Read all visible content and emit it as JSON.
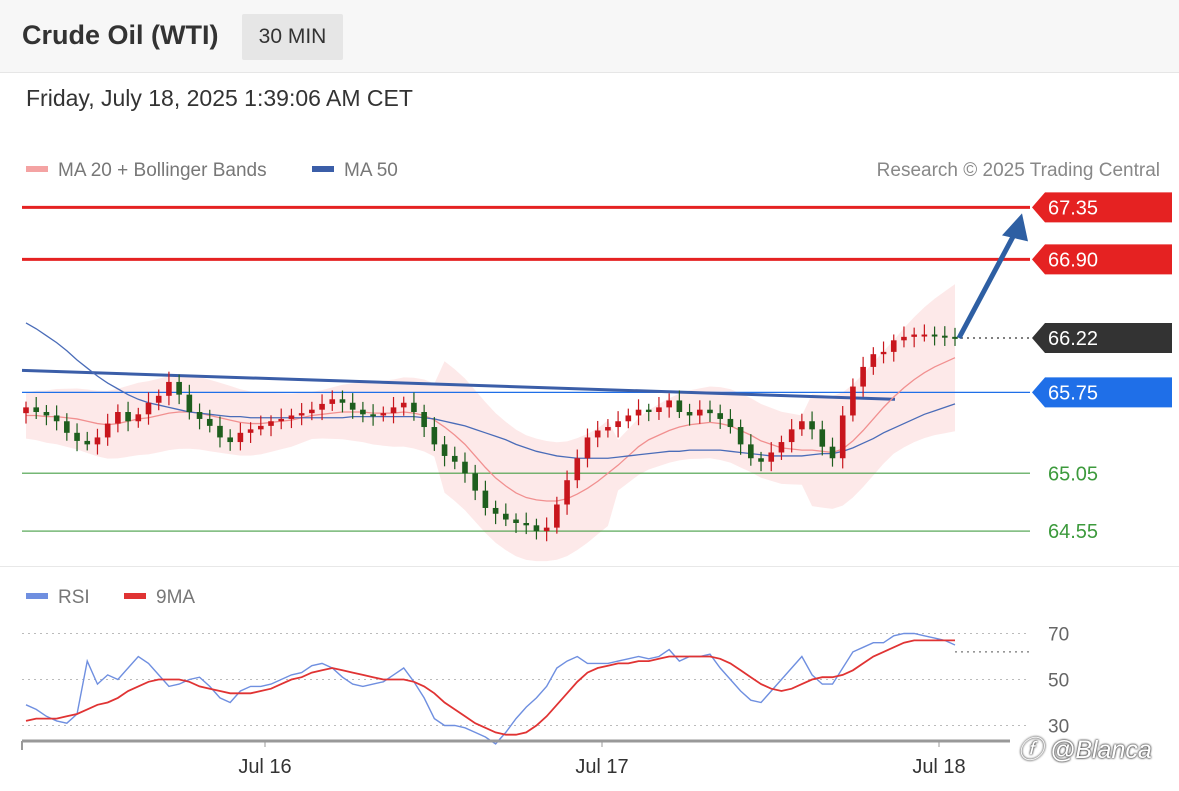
{
  "header": {
    "title": "Crude Oil (WTI)",
    "timeframe": "30 MIN",
    "timestamp": "Friday, July 18, 2025 1:39:06 AM CET"
  },
  "legend": {
    "ma20_label": "MA 20 + Bollinger Bands",
    "ma20_color": "#f4a3a3",
    "ma50_label": "MA 50",
    "ma50_color": "#3b5ea8",
    "credit": "Research © 2025 Trading Central"
  },
  "rsi_legend": {
    "rsi_label": "RSI",
    "rsi_color": "#6f8fe0",
    "ma9_label": "9MA",
    "ma9_color": "#e03333"
  },
  "chart_data": [
    {
      "type": "candlestick",
      "ylim": [
        64.3,
        67.5
      ],
      "x_tick_labels": [
        "Jul 16",
        "Jul 17",
        "Jul 18"
      ],
      "levels": [
        {
          "value": 67.35,
          "label": "67.35",
          "color": "#e52222",
          "kind": "resistance"
        },
        {
          "value": 66.9,
          "label": "66.90",
          "color": "#e52222",
          "kind": "resistance"
        },
        {
          "value": 66.22,
          "label": "66.22",
          "color": "#333333",
          "kind": "last"
        },
        {
          "value": 65.75,
          "label": "65.75",
          "color": "#1f6fe8",
          "kind": "pivot"
        },
        {
          "value": 65.05,
          "label": "65.05",
          "color": "#3c9a3c",
          "kind": "support"
        },
        {
          "value": 64.55,
          "label": "64.55",
          "color": "#3c9a3c",
          "kind": "support"
        }
      ],
      "close": [
        65.62,
        65.58,
        65.55,
        65.5,
        65.4,
        65.33,
        65.3,
        65.36,
        65.48,
        65.58,
        65.5,
        65.56,
        65.66,
        65.72,
        65.84,
        65.73,
        65.58,
        65.52,
        65.46,
        65.36,
        65.32,
        65.4,
        65.43,
        65.46,
        65.5,
        65.52,
        65.55,
        65.57,
        65.6,
        65.65,
        65.69,
        65.66,
        65.6,
        65.56,
        65.55,
        65.57,
        65.62,
        65.66,
        65.58,
        65.45,
        65.3,
        65.2,
        65.15,
        65.05,
        64.9,
        64.75,
        64.7,
        64.65,
        64.62,
        64.6,
        64.55,
        64.58,
        64.78,
        64.99,
        65.18,
        65.36,
        65.42,
        65.45,
        65.5,
        65.55,
        65.6,
        65.58,
        65.62,
        65.68,
        65.58,
        65.55,
        65.6,
        65.57,
        65.52,
        65.45,
        65.3,
        65.18,
        65.15,
        65.23,
        65.32,
        65.43,
        65.5,
        65.43,
        65.28,
        65.18,
        65.55,
        65.8,
        65.97,
        66.08,
        66.1,
        66.2,
        66.23,
        66.25,
        66.25,
        66.24,
        66.23,
        66.22
      ],
      "ma20": [
        65.55,
        65.55,
        65.54,
        65.54,
        65.53,
        65.52,
        65.5,
        65.48,
        65.47,
        65.48,
        65.5,
        65.52,
        65.53,
        65.55,
        65.57,
        65.58,
        65.58,
        65.57,
        65.55,
        65.53,
        65.51,
        65.49,
        65.48,
        65.48,
        65.49,
        65.5,
        65.51,
        65.53,
        65.55,
        65.56,
        65.57,
        65.58,
        65.58,
        65.58,
        65.57,
        65.57,
        65.57,
        65.58,
        65.57,
        65.55,
        65.51,
        65.45,
        65.38,
        65.3,
        65.2,
        65.1,
        65.01,
        64.94,
        64.88,
        64.84,
        64.82,
        64.81,
        64.81,
        64.83,
        64.87,
        64.92,
        64.98,
        65.05,
        65.12,
        65.2,
        65.28,
        65.34,
        65.38,
        65.42,
        65.45,
        65.47,
        65.48,
        65.49,
        65.48,
        65.46,
        65.42,
        65.38,
        65.33,
        65.3,
        65.27,
        65.26,
        65.25,
        65.25,
        65.24,
        65.23,
        65.26,
        65.33,
        65.42,
        65.52,
        65.62,
        65.71,
        65.79,
        65.86,
        65.92,
        65.97,
        66.01,
        66.05
      ],
      "ma50": [
        66.35,
        66.3,
        66.24,
        66.18,
        66.11,
        66.03,
        65.96,
        65.89,
        65.83,
        65.78,
        65.73,
        65.69,
        65.66,
        65.64,
        65.62,
        65.6,
        65.58,
        65.57,
        65.56,
        65.55,
        65.54,
        65.54,
        65.53,
        65.53,
        65.53,
        65.53,
        65.53,
        65.53,
        65.53,
        65.53,
        65.53,
        65.53,
        65.54,
        65.54,
        65.54,
        65.54,
        65.54,
        65.54,
        65.54,
        65.53,
        65.52,
        65.5,
        65.48,
        65.46,
        65.43,
        65.4,
        65.37,
        65.34,
        65.3,
        65.27,
        65.24,
        65.22,
        65.2,
        65.19,
        65.18,
        65.18,
        65.18,
        65.18,
        65.19,
        65.2,
        65.21,
        65.22,
        65.23,
        65.24,
        65.24,
        65.25,
        65.25,
        65.25,
        65.25,
        65.24,
        65.23,
        65.22,
        65.21,
        65.2,
        65.2,
        65.2,
        65.2,
        65.21,
        65.22,
        65.22,
        65.24,
        65.27,
        65.31,
        65.35,
        65.4,
        65.44,
        65.48,
        65.52,
        65.56,
        65.59,
        65.62,
        65.65
      ],
      "annotation": {
        "from": 66.22,
        "to": 67.35,
        "color": "#2e5fa3"
      }
    },
    {
      "type": "line",
      "ylim": [
        25,
        75
      ],
      "y_tick_labels": [
        "70",
        "50",
        "30"
      ],
      "series": [
        {
          "name": "RSI",
          "color": "#6f8fe0",
          "values": [
            39,
            37,
            34,
            32,
            31,
            35,
            58,
            48,
            52,
            50,
            55,
            60,
            57,
            52,
            47,
            48,
            50,
            51,
            47,
            42,
            40,
            45,
            47,
            47,
            48,
            50,
            52,
            53,
            56,
            57,
            55,
            51,
            48,
            47,
            48,
            49,
            52,
            55,
            49,
            42,
            33,
            30,
            30,
            29,
            27,
            25,
            22,
            27,
            33,
            38,
            42,
            47,
            55,
            58,
            60,
            57,
            57,
            57,
            58,
            59,
            60,
            59,
            60,
            63,
            58,
            60,
            60,
            61,
            55,
            50,
            45,
            41,
            40,
            45,
            50,
            55,
            60,
            52,
            48,
            48,
            55,
            62,
            64,
            66,
            66,
            69,
            70,
            70,
            69,
            68,
            67,
            65
          ]
        },
        {
          "name": "9MA",
          "color": "#e03333",
          "values": [
            32,
            33,
            33,
            33,
            34,
            35,
            37,
            39,
            40,
            42,
            45,
            47,
            49,
            50,
            50,
            50,
            49,
            47,
            46,
            45,
            44,
            44,
            44,
            45,
            46,
            48,
            50,
            51,
            53,
            54,
            55,
            54,
            53,
            52,
            51,
            50,
            50,
            50,
            49,
            47,
            44,
            40,
            37,
            34,
            31,
            29,
            27,
            26,
            26,
            27,
            30,
            34,
            39,
            44,
            49,
            53,
            55,
            56,
            57,
            57,
            58,
            58,
            59,
            60,
            60,
            60,
            60,
            60,
            59,
            57,
            54,
            51,
            48,
            46,
            45,
            46,
            48,
            50,
            51,
            51,
            52,
            54,
            57,
            60,
            62,
            64,
            66,
            67,
            67,
            67,
            67,
            67
          ]
        }
      ]
    }
  ]
}
